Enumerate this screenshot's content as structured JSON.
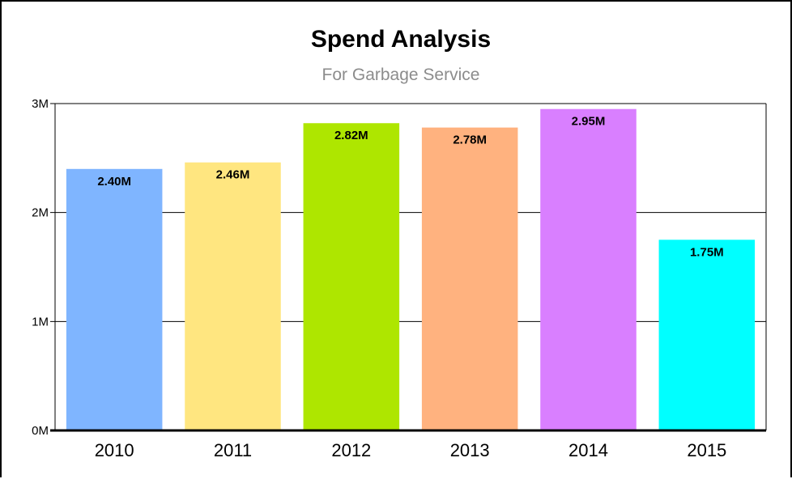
{
  "chart_data": {
    "type": "bar",
    "title": "Spend Analysis",
    "subtitle": "For Garbage Service",
    "xlabel": "",
    "ylabel": "",
    "categories": [
      "2010",
      "2011",
      "2012",
      "2013",
      "2014",
      "2015"
    ],
    "values": [
      2.4,
      2.46,
      2.82,
      2.78,
      2.95,
      1.75
    ],
    "value_unit": "M",
    "data_labels": [
      "2.40M",
      "2.46M",
      "2.82M",
      "2.78M",
      "2.95M",
      "1.75M"
    ],
    "colors": [
      "#7fb5ff",
      "#ffe680",
      "#aee600",
      "#ffb27f",
      "#d97fff",
      "#00ffff"
    ],
    "ylim": [
      0,
      3
    ],
    "yticks": [
      0,
      1,
      2,
      3
    ],
    "ytick_labels": [
      "0M",
      "1M",
      "2M",
      "3M"
    ],
    "grid": true,
    "legend": "none"
  }
}
